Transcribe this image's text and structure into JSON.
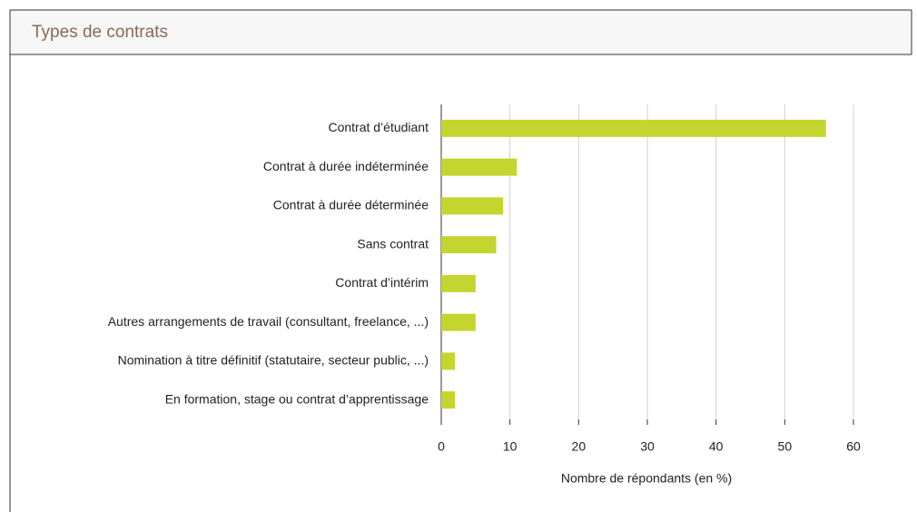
{
  "chart_data": {
    "type": "barh",
    "title": "Types de contrats",
    "categories": [
      "Contrat d’étudiant",
      "Contrat à durée indéterminée",
      "Contrat à durée déterminée",
      "Sans contrat",
      "Contrat d’intérim",
      "Autres arrangements de travail (consultant, freelance, ...)",
      "Nomination à titre définitif (statutaire, secteur public, ...)",
      "En formation, stage ou contrat d’apprentissage"
    ],
    "values": [
      56,
      11,
      9,
      8,
      5,
      5,
      2,
      2
    ],
    "color": "#c5d52f",
    "xlim": [
      0,
      60
    ],
    "xticks": [
      0,
      10,
      20,
      30,
      40,
      50,
      60
    ],
    "x_label": "Nombre de répondants (en %)",
    "grid": true
  }
}
